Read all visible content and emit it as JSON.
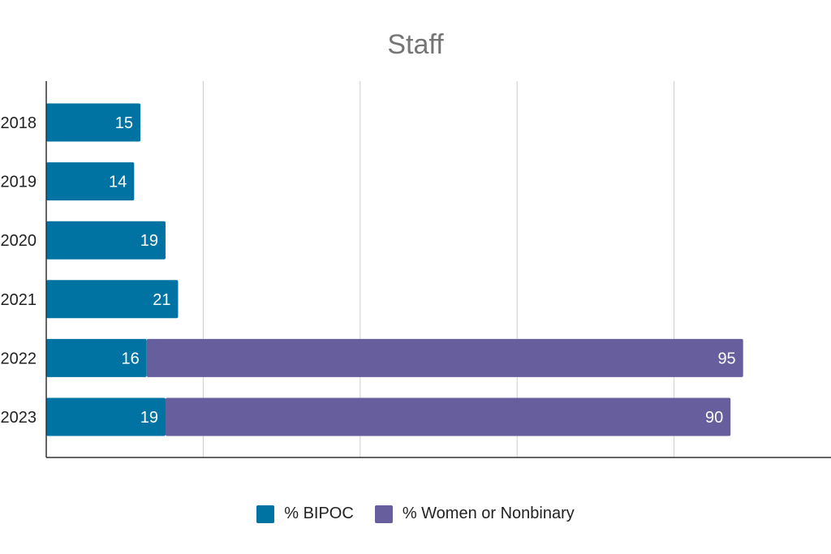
{
  "chart_data": {
    "type": "bar",
    "orientation": "horizontal",
    "stacked": true,
    "title": "Staff",
    "xlabel": "",
    "ylabel": "",
    "categories": [
      "2018",
      "2019",
      "2020",
      "2021",
      "2022",
      "2023"
    ],
    "series": [
      {
        "name": "% BIPOC",
        "color": "#0073A2",
        "values": [
          15,
          14,
          19,
          21,
          16,
          19
        ]
      },
      {
        "name": "% Women or Nonbinary",
        "color": "#675E9D",
        "values": [
          null,
          null,
          null,
          null,
          95,
          90
        ]
      }
    ],
    "xlim": [
      0,
      125
    ],
    "grid": true,
    "legend_position": "bottom"
  }
}
